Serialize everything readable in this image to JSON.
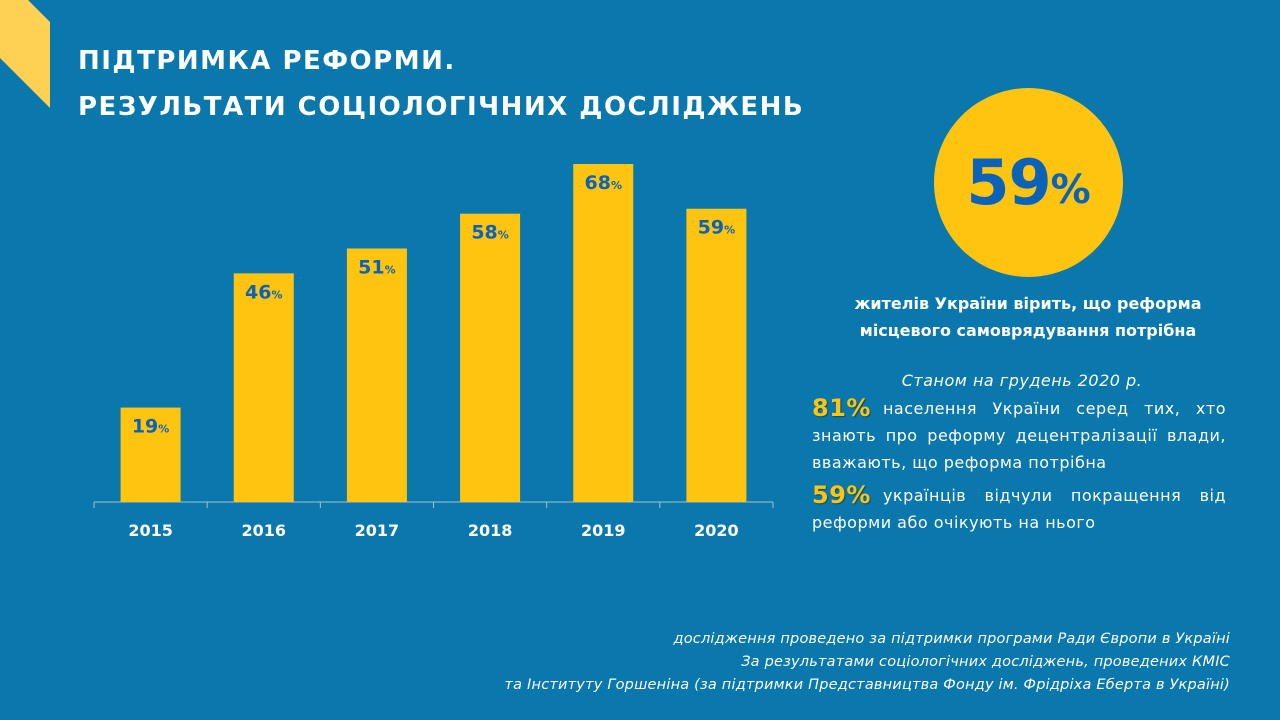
{
  "title": {
    "line1": "ПІДТРИМКА РЕФОРМИ.",
    "line2": "РЕЗУЛЬТАТИ СОЦІОЛОГІЧНИХ ДОСЛІДЖЕНЬ"
  },
  "colors": {
    "background": "#0a77ad",
    "accent_yellow": "#fec40f",
    "value_blue": "#0a63b8",
    "text_white": "#ffffff"
  },
  "chart_data": {
    "type": "bar",
    "categories": [
      "2015",
      "2016",
      "2017",
      "2018",
      "2019",
      "2020"
    ],
    "values": [
      19,
      46,
      51,
      58,
      68,
      59
    ],
    "value_suffix": "%",
    "ylim": [
      0,
      68
    ],
    "grid": false,
    "legend": "none"
  },
  "highlight": {
    "value": "59",
    "suffix": "%",
    "caption_line1": "жителів України вірить, що реформа",
    "caption_line2": "місцевого самоврядування потрібна"
  },
  "stats": {
    "as_of": "Станом на грудень 2020 р.",
    "item1_value": "81%",
    "item1_text": "населення України серед тих, хто знають про реформу децентралізації влади, вважають, що реформа потрібна",
    "item2_value": "59%",
    "item2_text": "українців відчули покращення від реформи або очікують на нього"
  },
  "sources": {
    "line1": "дослідження проведено за підтримки програми Ради Європи в Україні",
    "line2": "За результатами соціологічних досліджень, проведених КМІС",
    "line3": "та Інституту Горшеніна (за підтримки Представництва Фонду ім. Фрідріха Еберта в Україні)"
  }
}
